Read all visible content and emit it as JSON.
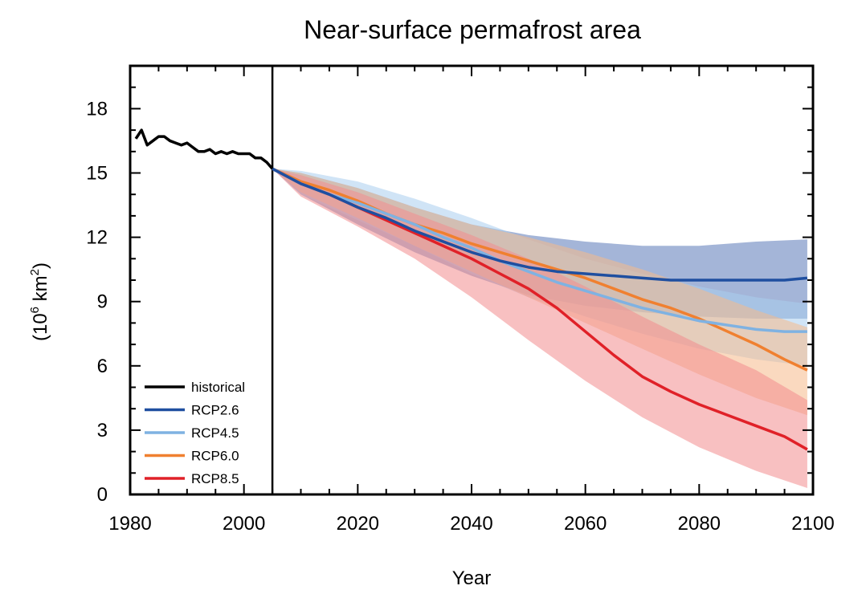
{
  "chart_data": {
    "type": "area",
    "title": "Near-surface permafrost area",
    "xlabel": "Year",
    "ylabel_base": "(10",
    "ylabel_exp1": "6",
    "ylabel_mid": " km",
    "ylabel_exp2": "2",
    "ylabel_end": ")",
    "xlim": [
      1980,
      2100
    ],
    "ylim": [
      0,
      20
    ],
    "xticks": [
      1980,
      2000,
      2020,
      2040,
      2060,
      2080,
      2100
    ],
    "yticks": [
      0,
      3,
      6,
      9,
      12,
      15,
      18
    ],
    "vline_year": 2005,
    "legend_position": "bottom-left",
    "series": [
      {
        "name": "historical",
        "color": "#000000",
        "mean": [
          [
            1981,
            16.6
          ],
          [
            1982,
            17.0
          ],
          [
            1983,
            16.3
          ],
          [
            1984,
            16.5
          ],
          [
            1985,
            16.7
          ],
          [
            1986,
            16.7
          ],
          [
            1987,
            16.5
          ],
          [
            1988,
            16.4
          ],
          [
            1989,
            16.3
          ],
          [
            1990,
            16.4
          ],
          [
            1991,
            16.2
          ],
          [
            1992,
            16.0
          ],
          [
            1993,
            16.0
          ],
          [
            1994,
            16.1
          ],
          [
            1995,
            15.9
          ],
          [
            1996,
            16.0
          ],
          [
            1997,
            15.9
          ],
          [
            1998,
            16.0
          ],
          [
            1999,
            15.9
          ],
          [
            2000,
            15.9
          ],
          [
            2001,
            15.9
          ],
          [
            2002,
            15.7
          ],
          [
            2003,
            15.7
          ],
          [
            2004,
            15.5
          ],
          [
            2005,
            15.2
          ]
        ]
      },
      {
        "name": "RCP2.6",
        "color": "#1f4fa0",
        "fill": "#5a78b8",
        "mean": [
          [
            2005,
            15.2
          ],
          [
            2010,
            14.5
          ],
          [
            2015,
            14.0
          ],
          [
            2020,
            13.4
          ],
          [
            2025,
            12.9
          ],
          [
            2030,
            12.3
          ],
          [
            2035,
            11.8
          ],
          [
            2040,
            11.3
          ],
          [
            2045,
            10.9
          ],
          [
            2050,
            10.6
          ],
          [
            2055,
            10.4
          ],
          [
            2060,
            10.3
          ],
          [
            2065,
            10.2
          ],
          [
            2070,
            10.1
          ],
          [
            2075,
            10.0
          ],
          [
            2080,
            10.0
          ],
          [
            2085,
            10.0
          ],
          [
            2090,
            10.0
          ],
          [
            2095,
            10.0
          ],
          [
            2099,
            10.1
          ]
        ],
        "upper": [
          [
            2005,
            15.2
          ],
          [
            2010,
            15.0
          ],
          [
            2020,
            14.3
          ],
          [
            2030,
            13.4
          ],
          [
            2040,
            12.6
          ],
          [
            2050,
            12.1
          ],
          [
            2060,
            11.8
          ],
          [
            2070,
            11.6
          ],
          [
            2080,
            11.6
          ],
          [
            2090,
            11.8
          ],
          [
            2099,
            11.9
          ]
        ],
        "lower": [
          [
            2005,
            15.2
          ],
          [
            2010,
            14.0
          ],
          [
            2020,
            12.6
          ],
          [
            2030,
            11.3
          ],
          [
            2040,
            10.2
          ],
          [
            2050,
            9.3
          ],
          [
            2060,
            8.8
          ],
          [
            2070,
            8.5
          ],
          [
            2080,
            8.3
          ],
          [
            2090,
            8.2
          ],
          [
            2099,
            8.2
          ]
        ]
      },
      {
        "name": "RCP4.5",
        "color": "#7fb2e2",
        "fill": "#a9cdee",
        "mean": [
          [
            2005,
            15.2
          ],
          [
            2010,
            14.5
          ],
          [
            2015,
            14.0
          ],
          [
            2020,
            13.6
          ],
          [
            2025,
            13.1
          ],
          [
            2030,
            12.6
          ],
          [
            2035,
            12.0
          ],
          [
            2040,
            11.5
          ],
          [
            2045,
            10.9
          ],
          [
            2050,
            10.4
          ],
          [
            2055,
            9.9
          ],
          [
            2060,
            9.5
          ],
          [
            2065,
            9.1
          ],
          [
            2070,
            8.7
          ],
          [
            2075,
            8.4
          ],
          [
            2080,
            8.1
          ],
          [
            2085,
            7.9
          ],
          [
            2090,
            7.7
          ],
          [
            2095,
            7.6
          ],
          [
            2099,
            7.6
          ]
        ],
        "upper": [
          [
            2005,
            15.2
          ],
          [
            2010,
            15.1
          ],
          [
            2020,
            14.6
          ],
          [
            2030,
            13.8
          ],
          [
            2040,
            12.9
          ],
          [
            2050,
            11.9
          ],
          [
            2060,
            11.0
          ],
          [
            2070,
            10.3
          ],
          [
            2080,
            9.7
          ],
          [
            2090,
            9.2
          ],
          [
            2099,
            8.9
          ]
        ],
        "lower": [
          [
            2005,
            15.2
          ],
          [
            2010,
            14.0
          ],
          [
            2020,
            12.8
          ],
          [
            2030,
            11.6
          ],
          [
            2040,
            10.3
          ],
          [
            2050,
            9.2
          ],
          [
            2060,
            8.3
          ],
          [
            2070,
            7.5
          ],
          [
            2080,
            6.8
          ],
          [
            2090,
            6.3
          ],
          [
            2099,
            6.0
          ]
        ]
      },
      {
        "name": "RCP6.0",
        "color": "#f08030",
        "fill": "#f6b98a",
        "mean": [
          [
            2005,
            15.2
          ],
          [
            2010,
            14.6
          ],
          [
            2015,
            14.2
          ],
          [
            2020,
            13.7
          ],
          [
            2025,
            13.1
          ],
          [
            2030,
            12.6
          ],
          [
            2035,
            12.2
          ],
          [
            2040,
            11.7
          ],
          [
            2045,
            11.3
          ],
          [
            2050,
            10.9
          ],
          [
            2055,
            10.5
          ],
          [
            2060,
            10.1
          ],
          [
            2065,
            9.6
          ],
          [
            2070,
            9.1
          ],
          [
            2075,
            8.7
          ],
          [
            2080,
            8.2
          ],
          [
            2085,
            7.6
          ],
          [
            2090,
            7.0
          ],
          [
            2095,
            6.3
          ],
          [
            2099,
            5.8
          ]
        ],
        "upper": [
          [
            2005,
            15.2
          ],
          [
            2010,
            15.0
          ],
          [
            2020,
            14.3
          ],
          [
            2030,
            13.4
          ],
          [
            2040,
            12.6
          ],
          [
            2050,
            12.0
          ],
          [
            2060,
            11.3
          ],
          [
            2070,
            10.5
          ],
          [
            2080,
            9.6
          ],
          [
            2090,
            8.6
          ],
          [
            2099,
            7.8
          ]
        ],
        "lower": [
          [
            2005,
            15.2
          ],
          [
            2010,
            14.1
          ],
          [
            2020,
            12.9
          ],
          [
            2030,
            11.6
          ],
          [
            2040,
            10.4
          ],
          [
            2050,
            9.2
          ],
          [
            2060,
            8.0
          ],
          [
            2070,
            6.8
          ],
          [
            2080,
            5.6
          ],
          [
            2090,
            4.5
          ],
          [
            2099,
            3.7
          ]
        ]
      },
      {
        "name": "RCP8.5",
        "color": "#e02128",
        "fill": "#f28c8e",
        "mean": [
          [
            2005,
            15.2
          ],
          [
            2010,
            14.5
          ],
          [
            2015,
            14.0
          ],
          [
            2020,
            13.4
          ],
          [
            2025,
            12.8
          ],
          [
            2030,
            12.2
          ],
          [
            2035,
            11.6
          ],
          [
            2040,
            11.0
          ],
          [
            2045,
            10.3
          ],
          [
            2050,
            9.6
          ],
          [
            2055,
            8.7
          ],
          [
            2060,
            7.6
          ],
          [
            2065,
            6.5
          ],
          [
            2070,
            5.5
          ],
          [
            2075,
            4.8
          ],
          [
            2080,
            4.2
          ],
          [
            2085,
            3.7
          ],
          [
            2090,
            3.2
          ],
          [
            2095,
            2.7
          ],
          [
            2099,
            2.1
          ]
        ],
        "upper": [
          [
            2005,
            15.2
          ],
          [
            2010,
            14.9
          ],
          [
            2020,
            14.1
          ],
          [
            2030,
            13.1
          ],
          [
            2040,
            12.1
          ],
          [
            2050,
            11.0
          ],
          [
            2060,
            9.7
          ],
          [
            2070,
            8.3
          ],
          [
            2080,
            7.0
          ],
          [
            2090,
            5.8
          ],
          [
            2099,
            4.4
          ]
        ],
        "lower": [
          [
            2005,
            15.2
          ],
          [
            2010,
            13.9
          ],
          [
            2020,
            12.5
          ],
          [
            2030,
            11.0
          ],
          [
            2040,
            9.2
          ],
          [
            2050,
            7.2
          ],
          [
            2060,
            5.3
          ],
          [
            2070,
            3.6
          ],
          [
            2080,
            2.2
          ],
          [
            2090,
            1.1
          ],
          [
            2099,
            0.3
          ]
        ]
      }
    ]
  }
}
